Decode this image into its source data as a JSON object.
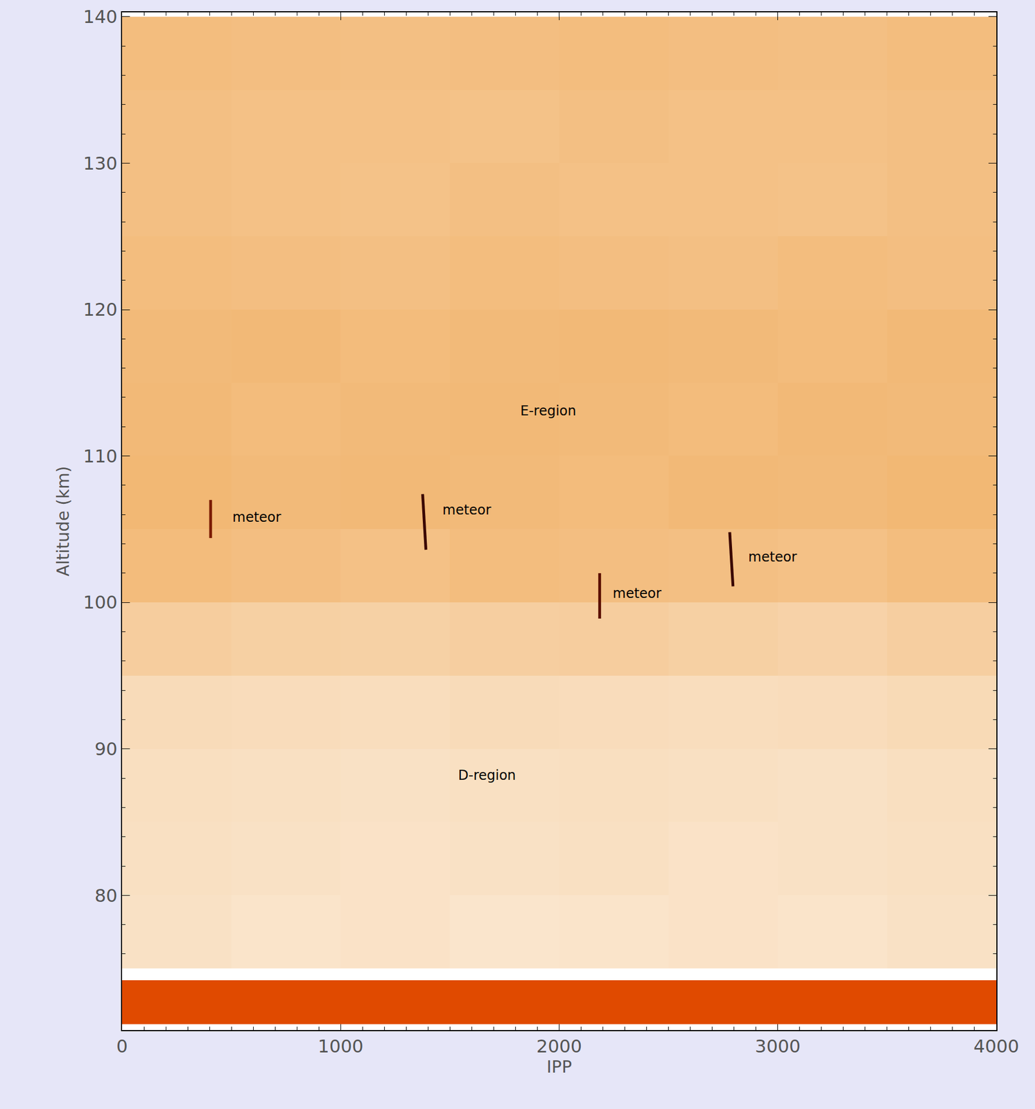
{
  "chart_data": {
    "type": "heatmap",
    "xlabel": "IPP",
    "ylabel": "Altitude (km)",
    "xlim": [
      0,
      4000
    ],
    "ylim": [
      70.8,
      140.3
    ],
    "xticks": [
      0,
      1000,
      2000,
      3000,
      4000
    ],
    "yticks": [
      80,
      90,
      100,
      110,
      120,
      130,
      140
    ],
    "grid": false,
    "heatmap": {
      "x": [
        250,
        750,
        1250,
        1750,
        2250,
        2750,
        3250,
        3750
      ],
      "y": [
        77.5,
        82.5,
        87.5,
        92.5,
        97.5,
        102.5,
        107.5,
        112.5,
        117.5,
        122.5,
        127.5,
        132.5,
        137.5
      ],
      "z": [
        [
          0.24,
          0.22,
          0.23,
          0.21,
          0.22,
          0.23,
          0.22,
          0.24
        ],
        [
          0.25,
          0.24,
          0.23,
          0.24,
          0.25,
          0.23,
          0.24,
          0.25
        ],
        [
          0.26,
          0.25,
          0.24,
          0.25,
          0.26,
          0.25,
          0.24,
          0.26
        ],
        [
          0.29,
          0.28,
          0.27,
          0.29,
          0.28,
          0.27,
          0.28,
          0.3
        ],
        [
          0.4,
          0.38,
          0.37,
          0.39,
          0.4,
          0.38,
          0.36,
          0.39
        ],
        [
          0.54,
          0.52,
          0.5,
          0.53,
          0.52,
          0.51,
          0.5,
          0.53
        ],
        [
          0.57,
          0.55,
          0.56,
          0.55,
          0.54,
          0.56,
          0.55,
          0.57
        ],
        [
          0.56,
          0.54,
          0.55,
          0.56,
          0.55,
          0.54,
          0.56,
          0.55
        ],
        [
          0.55,
          0.56,
          0.54,
          0.55,
          0.56,
          0.55,
          0.54,
          0.56
        ],
        [
          0.53,
          0.52,
          0.51,
          0.53,
          0.52,
          0.51,
          0.53,
          0.52
        ],
        [
          0.51,
          0.5,
          0.49,
          0.51,
          0.5,
          0.5,
          0.49,
          0.51
        ],
        [
          0.51,
          0.5,
          0.5,
          0.49,
          0.51,
          0.5,
          0.5,
          0.51
        ],
        [
          0.53,
          0.52,
          0.51,
          0.52,
          0.53,
          0.52,
          0.51,
          0.53
        ]
      ],
      "zlim": [
        0,
        1
      ],
      "colors": [
        "#ffffff",
        "#e8820c"
      ]
    },
    "clutter": {
      "altitude": [
        71.2,
        74.2
      ],
      "color": "#e04a00"
    },
    "meteors": [
      {
        "x": [
          405,
          405
        ],
        "y": [
          104.4,
          107.0
        ],
        "color": "#7a1a00"
      },
      {
        "x": [
          1375,
          1390
        ],
        "y": [
          107.4,
          103.6
        ],
        "color": "#3a0600"
      },
      {
        "x": [
          2185,
          2185
        ],
        "y": [
          102.0,
          98.9
        ],
        "color": "#5a0e00"
      },
      {
        "x": [
          2780,
          2795
        ],
        "y": [
          104.8,
          101.1
        ],
        "color": "#3a0600"
      }
    ],
    "annotations": [
      {
        "text": "meteor",
        "x": 500,
        "y": 105.8
      },
      {
        "text": "meteor",
        "x": 1460,
        "y": 106.3
      },
      {
        "text": "meteor",
        "x": 2240,
        "y": 100.6
      },
      {
        "text": "meteor",
        "x": 2860,
        "y": 103.1
      },
      {
        "text": "E-region",
        "x": 1950,
        "y": 113.1,
        "align": "center"
      },
      {
        "text": "D-region",
        "x": 1670,
        "y": 88.2,
        "align": "center"
      }
    ]
  }
}
